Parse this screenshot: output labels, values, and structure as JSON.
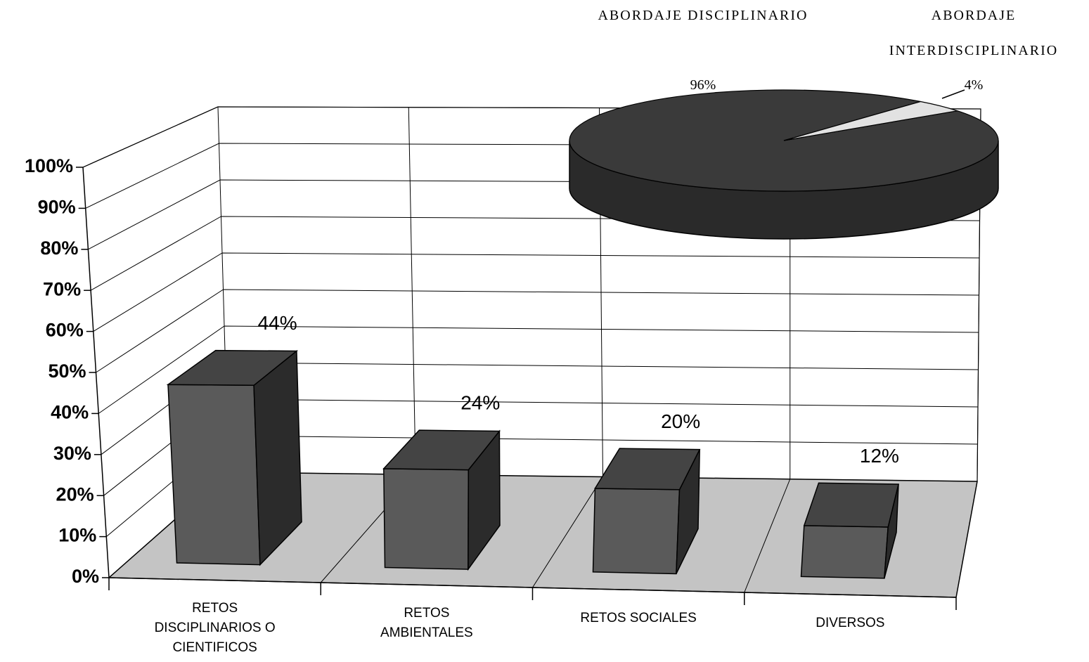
{
  "chart_data": [
    {
      "type": "bar",
      "categories": [
        "RETOS DISCIPLINARIOS O CIENTIFICOS",
        "RETOS AMBIENTALES",
        "RETOS SOCIALES",
        "DIVERSOS"
      ],
      "values": [
        44,
        24,
        20,
        12
      ],
      "value_labels": [
        "44%",
        "24%",
        "20%",
        "12%"
      ],
      "ylim": [
        0,
        100
      ],
      "yticks": [
        {
          "value": 0,
          "label": "0%"
        },
        {
          "value": 10,
          "label": "10%"
        },
        {
          "value": 20,
          "label": "20%"
        },
        {
          "value": 30,
          "label": "30%"
        },
        {
          "value": 40,
          "label": "40%"
        },
        {
          "value": 50,
          "label": "50%"
        },
        {
          "value": 60,
          "label": "60%"
        },
        {
          "value": 70,
          "label": "70%"
        },
        {
          "value": 80,
          "label": "80%"
        },
        {
          "value": 90,
          "label": "90%"
        },
        {
          "value": 100,
          "label": "100%"
        }
      ],
      "grid": true,
      "color": "#5a5a5a"
    },
    {
      "type": "pie",
      "categories": [
        "ABORDAJE DISCIPLINARIO",
        "ABORDAJE INTERDISCIPLINARIO"
      ],
      "values": [
        96,
        4
      ],
      "value_labels": [
        "96%",
        "4%"
      ],
      "colors": [
        "#3a3a3a",
        "#e2e2e2"
      ]
    }
  ]
}
